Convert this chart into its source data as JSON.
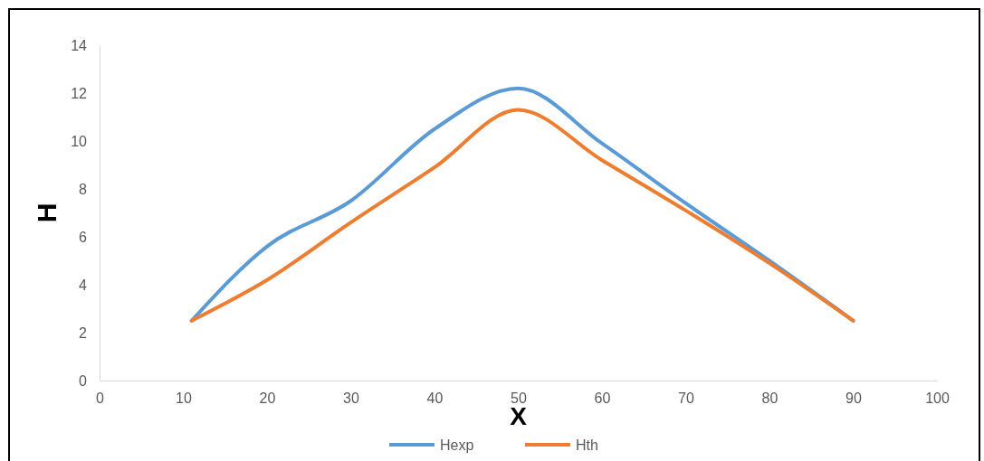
{
  "chart_data": {
    "type": "line",
    "xlabel": "X",
    "ylabel": "H",
    "x": [
      11,
      20,
      30,
      40,
      50,
      60,
      70,
      80,
      90
    ],
    "series": [
      {
        "name": "Hexp",
        "color": "#5b9bd5",
        "values": [
          2.5,
          5.6,
          7.5,
          10.5,
          12.2,
          9.9,
          7.4,
          5.0,
          2.5
        ]
      },
      {
        "name": "Hth",
        "color": "#ed7d31",
        "values": [
          2.5,
          4.2,
          6.6,
          8.9,
          11.3,
          9.2,
          7.1,
          4.9,
          2.5
        ]
      }
    ],
    "xlim": [
      0,
      100
    ],
    "xticks": [
      0,
      10,
      20,
      30,
      40,
      50,
      60,
      70,
      80,
      90,
      100
    ],
    "ylim": [
      0,
      14
    ],
    "yticks": [
      0,
      2,
      4,
      6,
      8,
      10,
      12,
      14
    ],
    "grid": false,
    "legend": "bottom",
    "marker": "none",
    "line_style": "solid"
  }
}
